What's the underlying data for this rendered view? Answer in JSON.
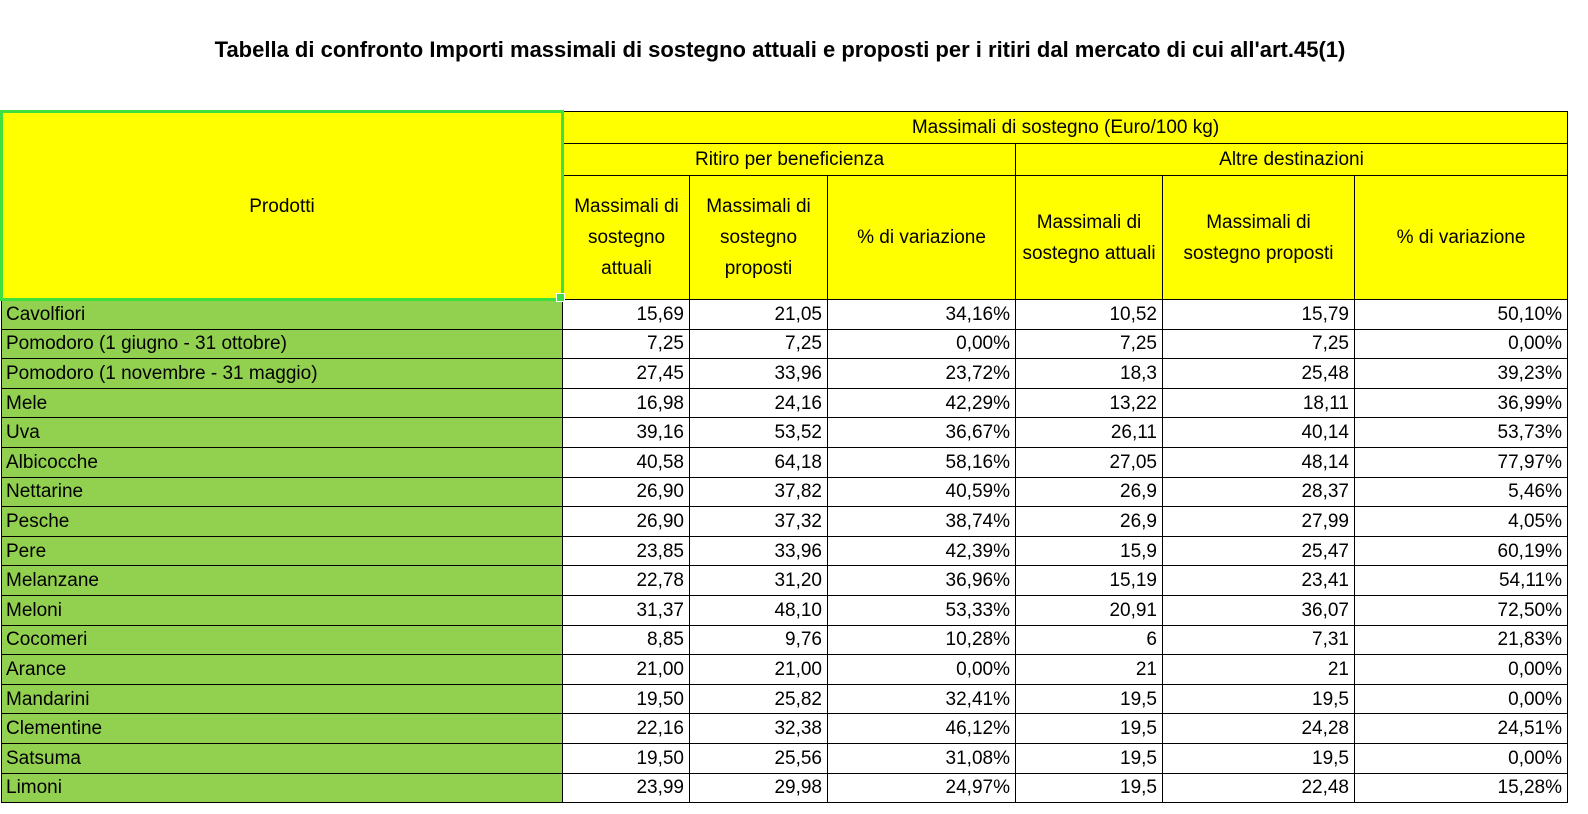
{
  "title": "Tabella di confronto Importi massimali di sostegno attuali e proposti per i ritiri dal mercato di cui all'art.45(1)",
  "header": {
    "products": "Prodotti",
    "group_main": "Massimali di sostegno (Euro/100 kg)",
    "group_a": "Ritiro per beneficienza",
    "group_b": "Altre destinazioni",
    "col_a_current": "Massimali di sostegno attuali",
    "col_a_proposed": "Massimali di sostegno proposti",
    "col_a_variation": "% di variazione",
    "col_b_current": "Massimali di sostegno attuali",
    "col_b_proposed": "Massimali di sostegno proposti",
    "col_b_variation": "% di variazione"
  },
  "rows": [
    {
      "product": "Cavolfiori",
      "a_cur": "15,69",
      "a_prop": "21,05",
      "a_var": "34,16%",
      "b_cur": "10,52",
      "b_prop": "15,79",
      "b_var": "50,10%"
    },
    {
      "product": "Pomodoro (1 giugno - 31 ottobre)",
      "a_cur": "7,25",
      "a_prop": "7,25",
      "a_var": "0,00%",
      "b_cur": "7,25",
      "b_prop": "7,25",
      "b_var": "0,00%"
    },
    {
      "product": "Pomodoro (1 novembre - 31 maggio)",
      "a_cur": "27,45",
      "a_prop": "33,96",
      "a_var": "23,72%",
      "b_cur": "18,3",
      "b_prop": "25,48",
      "b_var": "39,23%"
    },
    {
      "product": "Mele",
      "a_cur": "16,98",
      "a_prop": "24,16",
      "a_var": "42,29%",
      "b_cur": "13,22",
      "b_prop": "18,11",
      "b_var": "36,99%"
    },
    {
      "product": "Uva",
      "a_cur": "39,16",
      "a_prop": "53,52",
      "a_var": "36,67%",
      "b_cur": "26,11",
      "b_prop": "40,14",
      "b_var": "53,73%"
    },
    {
      "product": "Albicocche",
      "a_cur": "40,58",
      "a_prop": "64,18",
      "a_var": "58,16%",
      "b_cur": "27,05",
      "b_prop": "48,14",
      "b_var": "77,97%"
    },
    {
      "product": "Nettarine",
      "a_cur": "26,90",
      "a_prop": "37,82",
      "a_var": "40,59%",
      "b_cur": "26,9",
      "b_prop": "28,37",
      "b_var": "5,46%"
    },
    {
      "product": "Pesche",
      "a_cur": "26,90",
      "a_prop": "37,32",
      "a_var": "38,74%",
      "b_cur": "26,9",
      "b_prop": "27,99",
      "b_var": "4,05%"
    },
    {
      "product": "Pere",
      "a_cur": "23,85",
      "a_prop": "33,96",
      "a_var": "42,39%",
      "b_cur": "15,9",
      "b_prop": "25,47",
      "b_var": "60,19%"
    },
    {
      "product": "Melanzane",
      "a_cur": "22,78",
      "a_prop": "31,20",
      "a_var": "36,96%",
      "b_cur": "15,19",
      "b_prop": "23,41",
      "b_var": "54,11%"
    },
    {
      "product": "Meloni",
      "a_cur": "31,37",
      "a_prop": "48,10",
      "a_var": "53,33%",
      "b_cur": "20,91",
      "b_prop": "36,07",
      "b_var": "72,50%"
    },
    {
      "product": "Cocomeri",
      "a_cur": "8,85",
      "a_prop": "9,76",
      "a_var": "10,28%",
      "b_cur": "6",
      "b_prop": "7,31",
      "b_var": "21,83%"
    },
    {
      "product": "Arance",
      "a_cur": "21,00",
      "a_prop": "21,00",
      "a_var": "0,00%",
      "b_cur": "21",
      "b_prop": "21",
      "b_var": "0,00%"
    },
    {
      "product": "Mandarini",
      "a_cur": "19,50",
      "a_prop": "25,82",
      "a_var": "32,41%",
      "b_cur": "19,5",
      "b_prop": "19,5",
      "b_var": "0,00%"
    },
    {
      "product": "Clementine",
      "a_cur": "22,16",
      "a_prop": "32,38",
      "a_var": "46,12%",
      "b_cur": "19,5",
      "b_prop": "24,28",
      "b_var": "24,51%"
    },
    {
      "product": "Satsuma",
      "a_cur": "19,50",
      "a_prop": "25,56",
      "a_var": "31,08%",
      "b_cur": "19,5",
      "b_prop": "19,5",
      "b_var": "0,00%"
    },
    {
      "product": "Limoni",
      "a_cur": "23,99",
      "a_prop": "29,98",
      "a_var": "24,97%",
      "b_cur": "19,5",
      "b_prop": "22,48",
      "b_var": "15,28%"
    }
  ],
  "colors": {
    "header_yellow": "#ffff00",
    "product_green": "#92d050",
    "selection_green": "#3ee03e"
  }
}
